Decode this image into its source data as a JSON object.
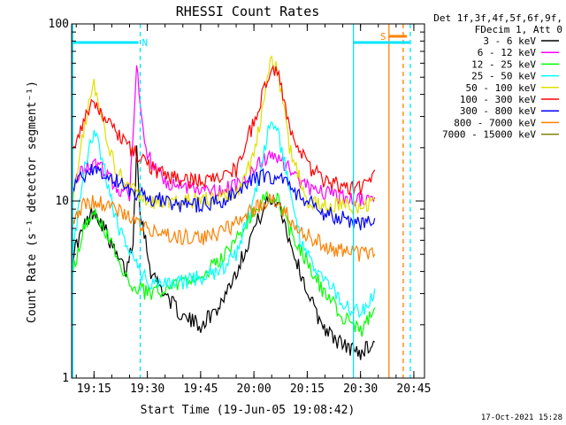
{
  "chart_data": {
    "type": "line",
    "title": "RHESSI Count Rates",
    "xlabel": "Start Time (19-Jun-05 19:08:42)",
    "ylabel": "Count Rate (s⁻¹ detector segment⁻¹)",
    "y_scale": "log",
    "ylim": [
      1,
      100
    ],
    "xlim": [
      "19:08:42",
      "20:48:00"
    ],
    "x_ticks": [
      "19:15",
      "19:30",
      "19:45",
      "20:00",
      "20:15",
      "20:30",
      "20:45"
    ],
    "y_ticks": [
      "1",
      "10",
      "100"
    ],
    "legend_header": [
      "Det 1f,3f,4f,5f,6f,9f,",
      "FDecim 1, Att 0"
    ],
    "legend_position": "right",
    "timestamp": "17-Oct-2021 15:28",
    "attenuator_flags": [
      {
        "label": "N",
        "start": "19:08:42",
        "end": "19:27:30",
        "color": "#00e5ff"
      },
      {
        "label": "",
        "start": "20:28:00",
        "end": "20:43:50",
        "color": "#00e5ff"
      },
      {
        "label": "S",
        "start": "20:38:00",
        "end": "20:43:00",
        "color": "#ff8000"
      }
    ],
    "vertical_markers": [
      {
        "time": "19:09:00",
        "style": "solid",
        "color": "#00e5ff"
      },
      {
        "time": "19:28:00",
        "style": "dashed",
        "color": "#00e5ff"
      },
      {
        "time": "20:28:00",
        "style": "solid",
        "color": "#00e5ff"
      },
      {
        "time": "20:38:00",
        "style": "solid",
        "color": "#ff8000"
      },
      {
        "time": "20:42:00",
        "style": "dashed",
        "color": "#ff8000"
      },
      {
        "time": "20:44:00",
        "style": "dashed",
        "color": "#00e5ff"
      }
    ],
    "series": [
      {
        "name": "3 - 6 keV",
        "color": "#000000",
        "points": [
          [
            "19:09",
            5
          ],
          [
            "19:12",
            7
          ],
          [
            "19:15",
            9
          ],
          [
            "19:18",
            7
          ],
          [
            "19:21",
            5
          ],
          [
            "19:24",
            4
          ],
          [
            "19:26",
            6
          ],
          [
            "19:27",
            20
          ],
          [
            "19:28",
            9
          ],
          [
            "19:31",
            4
          ],
          [
            "19:35",
            3
          ],
          [
            "19:40",
            2.2
          ],
          [
            "19:45",
            2
          ],
          [
            "19:50",
            2.5
          ],
          [
            "19:55",
            4
          ],
          [
            "20:00",
            7
          ],
          [
            "20:04",
            10
          ],
          [
            "20:07",
            10
          ],
          [
            "20:10",
            6
          ],
          [
            "20:14",
            3.5
          ],
          [
            "20:18",
            2.2
          ],
          [
            "20:22",
            1.7
          ],
          [
            "20:26",
            1.5
          ],
          [
            "20:30",
            1.4
          ],
          [
            "20:34",
            1.6
          ]
        ]
      },
      {
        "name": "6 - 12 keV",
        "color": "#ff00ff",
        "points": [
          [
            "19:09",
            12
          ],
          [
            "19:12",
            15
          ],
          [
            "19:15",
            16
          ],
          [
            "19:18",
            15
          ],
          [
            "19:21",
            12
          ],
          [
            "19:25",
            11
          ],
          [
            "19:27",
            60
          ],
          [
            "19:28",
            35
          ],
          [
            "19:30",
            18
          ],
          [
            "19:35",
            13
          ],
          [
            "19:40",
            12
          ],
          [
            "19:45",
            11.5
          ],
          [
            "19:50",
            11.5
          ],
          [
            "19:55",
            12
          ],
          [
            "20:00",
            15
          ],
          [
            "20:04",
            18
          ],
          [
            "20:07",
            18
          ],
          [
            "20:10",
            15
          ],
          [
            "20:15",
            12
          ],
          [
            "20:20",
            11
          ],
          [
            "20:25",
            10.5
          ],
          [
            "20:30",
            10
          ],
          [
            "20:34",
            10.5
          ]
        ]
      },
      {
        "name": "12 - 25 keV",
        "color": "#00ff00",
        "points": [
          [
            "19:09",
            4
          ],
          [
            "19:12",
            7
          ],
          [
            "19:15",
            9
          ],
          [
            "19:18",
            7
          ],
          [
            "19:21",
            5
          ],
          [
            "19:25",
            3.5
          ],
          [
            "19:30",
            3
          ],
          [
            "19:35",
            3.2
          ],
          [
            "19:40",
            3.5
          ],
          [
            "19:45",
            3.8
          ],
          [
            "19:50",
            4.5
          ],
          [
            "19:55",
            6
          ],
          [
            "20:00",
            9
          ],
          [
            "20:04",
            11
          ],
          [
            "20:07",
            10
          ],
          [
            "20:10",
            7
          ],
          [
            "20:15",
            4.5
          ],
          [
            "20:20",
            3
          ],
          [
            "20:25",
            2.2
          ],
          [
            "20:30",
            1.8
          ],
          [
            "20:34",
            2.5
          ]
        ]
      },
      {
        "name": "25 - 50 keV",
        "color": "#00ffff",
        "points": [
          [
            "19:09",
            5
          ],
          [
            "19:12",
            14
          ],
          [
            "19:15",
            25
          ],
          [
            "19:18",
            15
          ],
          [
            "19:21",
            8
          ],
          [
            "19:25",
            5
          ],
          [
            "19:30",
            3.5
          ],
          [
            "19:35",
            3.5
          ],
          [
            "19:40",
            3.5
          ],
          [
            "19:45",
            3.7
          ],
          [
            "19:50",
            4
          ],
          [
            "19:55",
            5
          ],
          [
            "20:00",
            10
          ],
          [
            "20:04",
            25
          ],
          [
            "20:06",
            28
          ],
          [
            "20:09",
            15
          ],
          [
            "20:13",
            6
          ],
          [
            "20:18",
            4
          ],
          [
            "20:22",
            3.2
          ],
          [
            "20:26",
            2.5
          ],
          [
            "20:30",
            2.3
          ],
          [
            "20:34",
            3.2
          ]
        ]
      },
      {
        "name": "50 - 100 keV",
        "color": "#e0e000",
        "points": [
          [
            "19:09",
            10
          ],
          [
            "19:12",
            25
          ],
          [
            "19:15",
            45
          ],
          [
            "19:18",
            25
          ],
          [
            "19:21",
            15
          ],
          [
            "19:25",
            12
          ],
          [
            "19:30",
            10
          ],
          [
            "19:35",
            10
          ],
          [
            "19:40",
            10
          ],
          [
            "19:45",
            10
          ],
          [
            "19:50",
            10.5
          ],
          [
            "19:55",
            11
          ],
          [
            "20:00",
            18
          ],
          [
            "20:03",
            40
          ],
          [
            "20:05",
            65
          ],
          [
            "20:07",
            50
          ],
          [
            "20:10",
            20
          ],
          [
            "20:15",
            10
          ],
          [
            "20:20",
            9.5
          ],
          [
            "20:25",
            9.5
          ],
          [
            "20:30",
            9
          ],
          [
            "20:34",
            10
          ]
        ]
      },
      {
        "name": "100 - 300 keV",
        "color": "#ff0000",
        "points": [
          [
            "19:09",
            20
          ],
          [
            "19:12",
            28
          ],
          [
            "19:15",
            38
          ],
          [
            "19:18",
            30
          ],
          [
            "19:21",
            24
          ],
          [
            "19:25",
            20
          ],
          [
            "19:30",
            16
          ],
          [
            "19:35",
            14
          ],
          [
            "19:40",
            13
          ],
          [
            "19:45",
            13
          ],
          [
            "19:50",
            13.5
          ],
          [
            "19:55",
            15
          ],
          [
            "20:00",
            28
          ],
          [
            "20:03",
            45
          ],
          [
            "20:05",
            58
          ],
          [
            "20:07",
            52
          ],
          [
            "20:10",
            25
          ],
          [
            "20:15",
            16
          ],
          [
            "20:20",
            13
          ],
          [
            "20:25",
            12
          ],
          [
            "20:30",
            12
          ],
          [
            "20:34",
            15
          ]
        ]
      },
      {
        "name": "300 - 800 keV",
        "color": "#0000ff",
        "points": [
          [
            "19:09",
            12
          ],
          [
            "19:12",
            14
          ],
          [
            "19:15",
            15
          ],
          [
            "19:18",
            14
          ],
          [
            "19:21",
            13
          ],
          [
            "19:25",
            11.5
          ],
          [
            "19:30",
            10.5
          ],
          [
            "19:35",
            10
          ],
          [
            "19:40",
            9.5
          ],
          [
            "19:45",
            9.5
          ],
          [
            "19:50",
            9.8
          ],
          [
            "19:55",
            11
          ],
          [
            "20:00",
            13
          ],
          [
            "20:04",
            14
          ],
          [
            "20:07",
            13.5
          ],
          [
            "20:10",
            12
          ],
          [
            "20:15",
            10
          ],
          [
            "20:20",
            8.5
          ],
          [
            "20:25",
            8
          ],
          [
            "20:30",
            7.5
          ],
          [
            "20:34",
            8
          ]
        ]
      },
      {
        "name": "800 - 7000 keV",
        "color": "#ff8000",
        "points": [
          [
            "19:09",
            8
          ],
          [
            "19:12",
            9.5
          ],
          [
            "19:15",
            10
          ],
          [
            "19:18",
            9.5
          ],
          [
            "19:21",
            9
          ],
          [
            "19:25",
            8
          ],
          [
            "19:30",
            7
          ],
          [
            "19:35",
            6.5
          ],
          [
            "19:40",
            6.3
          ],
          [
            "19:45",
            6.2
          ],
          [
            "19:50",
            6.5
          ],
          [
            "19:55",
            7.5
          ],
          [
            "20:00",
            9
          ],
          [
            "20:04",
            10
          ],
          [
            "20:07",
            9.5
          ],
          [
            "20:10",
            8
          ],
          [
            "20:15",
            6.5
          ],
          [
            "20:20",
            5.5
          ],
          [
            "20:25",
            5.2
          ],
          [
            "20:30",
            5
          ],
          [
            "20:34",
            5
          ]
        ]
      },
      {
        "name": "7000 - 15000 keV",
        "color": "#808000",
        "points": []
      }
    ]
  }
}
